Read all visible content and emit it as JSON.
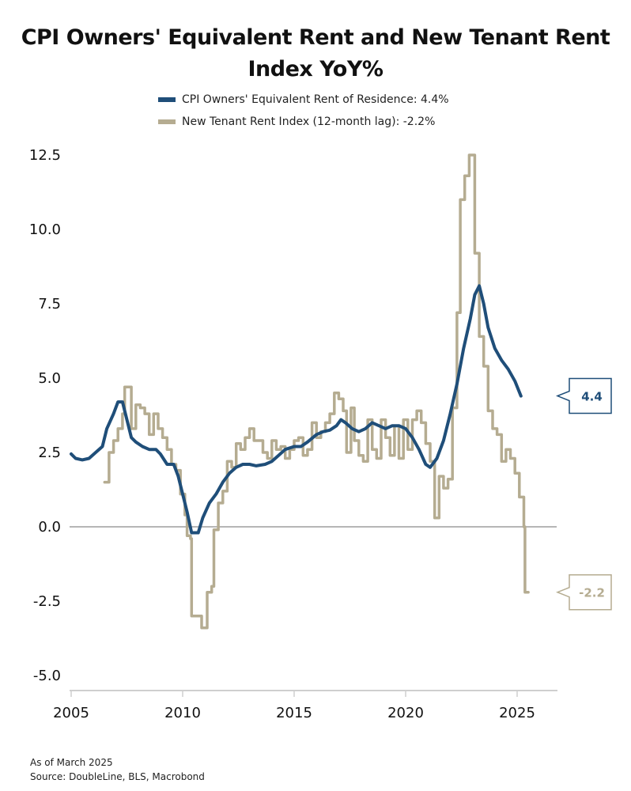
{
  "chart_data": {
    "type": "line",
    "title": "CPI Owners' Equivalent Rent and New Tenant Rent Index YoY%",
    "xlabel": "",
    "ylabel": "",
    "xlim": [
      2005,
      2026.8
    ],
    "ylim": [
      -5.0,
      12.5
    ],
    "x_ticks": [
      2005,
      2010,
      2015,
      2020,
      2025
    ],
    "x_tick_labels": [
      "2005",
      "2010",
      "2015",
      "2020",
      "2025"
    ],
    "y_ticks": [
      -5.0,
      -2.5,
      0.0,
      2.5,
      5.0,
      7.5,
      10.0,
      12.5
    ],
    "y_tick_labels": [
      "-5.0",
      "-2.5",
      "0.0",
      "2.5",
      "5.0",
      "7.5",
      "10.0",
      "12.5"
    ],
    "grid": false,
    "zero_line": true,
    "legend_position": "top-center",
    "series": [
      {
        "name": "CPI Owners' Equivalent Rent of Residence: 4.4%",
        "color": "#1f4e79",
        "last_value_label": "4.4",
        "points": [
          [
            2005.0,
            2.45
          ],
          [
            2005.2,
            2.3
          ],
          [
            2005.5,
            2.25
          ],
          [
            2005.8,
            2.3
          ],
          [
            2006.1,
            2.5
          ],
          [
            2006.4,
            2.7
          ],
          [
            2006.6,
            3.3
          ],
          [
            2006.9,
            3.8
          ],
          [
            2007.1,
            4.2
          ],
          [
            2007.3,
            4.2
          ],
          [
            2007.5,
            3.6
          ],
          [
            2007.7,
            3.0
          ],
          [
            2007.9,
            2.85
          ],
          [
            2008.2,
            2.7
          ],
          [
            2008.5,
            2.6
          ],
          [
            2008.8,
            2.6
          ],
          [
            2009.0,
            2.45
          ],
          [
            2009.3,
            2.1
          ],
          [
            2009.6,
            2.1
          ],
          [
            2009.8,
            1.7
          ],
          [
            2010.0,
            1.1
          ],
          [
            2010.2,
            0.5
          ],
          [
            2010.4,
            -0.2
          ],
          [
            2010.7,
            -0.2
          ],
          [
            2010.9,
            0.3
          ],
          [
            2011.2,
            0.8
          ],
          [
            2011.5,
            1.1
          ],
          [
            2011.8,
            1.5
          ],
          [
            2012.1,
            1.8
          ],
          [
            2012.4,
            2.0
          ],
          [
            2012.7,
            2.1
          ],
          [
            2013.0,
            2.1
          ],
          [
            2013.3,
            2.05
          ],
          [
            2013.7,
            2.1
          ],
          [
            2014.0,
            2.2
          ],
          [
            2014.3,
            2.4
          ],
          [
            2014.6,
            2.6
          ],
          [
            2015.0,
            2.7
          ],
          [
            2015.3,
            2.7
          ],
          [
            2015.6,
            2.85
          ],
          [
            2016.0,
            3.1
          ],
          [
            2016.3,
            3.2
          ],
          [
            2016.6,
            3.25
          ],
          [
            2016.9,
            3.4
          ],
          [
            2017.1,
            3.6
          ],
          [
            2017.3,
            3.5
          ],
          [
            2017.6,
            3.3
          ],
          [
            2017.9,
            3.2
          ],
          [
            2018.2,
            3.3
          ],
          [
            2018.5,
            3.5
          ],
          [
            2018.8,
            3.4
          ],
          [
            2019.1,
            3.3
          ],
          [
            2019.4,
            3.4
          ],
          [
            2019.7,
            3.4
          ],
          [
            2020.0,
            3.3
          ],
          [
            2020.3,
            3.0
          ],
          [
            2020.6,
            2.6
          ],
          [
            2020.9,
            2.1
          ],
          [
            2021.1,
            2.0
          ],
          [
            2021.4,
            2.3
          ],
          [
            2021.7,
            2.9
          ],
          [
            2022.0,
            3.8
          ],
          [
            2022.3,
            4.8
          ],
          [
            2022.6,
            6.0
          ],
          [
            2022.9,
            7.0
          ],
          [
            2023.1,
            7.8
          ],
          [
            2023.3,
            8.1
          ],
          [
            2023.5,
            7.5
          ],
          [
            2023.7,
            6.7
          ],
          [
            2024.0,
            6.0
          ],
          [
            2024.3,
            5.6
          ],
          [
            2024.6,
            5.3
          ],
          [
            2024.9,
            4.9
          ],
          [
            2025.17,
            4.4
          ]
        ]
      },
      {
        "name": "New Tenant Rent Index (12-month lag): -2.2%",
        "color": "#b5ac91",
        "last_value_label": "-2.2",
        "points": [
          [
            2006.5,
            1.5
          ],
          [
            2006.7,
            2.5
          ],
          [
            2006.9,
            2.9
          ],
          [
            2007.1,
            3.3
          ],
          [
            2007.3,
            3.8
          ],
          [
            2007.4,
            4.7
          ],
          [
            2007.6,
            4.7
          ],
          [
            2007.7,
            3.3
          ],
          [
            2007.9,
            4.1
          ],
          [
            2008.1,
            4.0
          ],
          [
            2008.3,
            3.8
          ],
          [
            2008.5,
            3.1
          ],
          [
            2008.7,
            3.8
          ],
          [
            2008.9,
            3.3
          ],
          [
            2009.1,
            3.0
          ],
          [
            2009.3,
            2.6
          ],
          [
            2009.5,
            2.1
          ],
          [
            2009.7,
            1.9
          ],
          [
            2009.9,
            1.1
          ],
          [
            2010.1,
            0.4
          ],
          [
            2010.2,
            -0.3
          ],
          [
            2010.35,
            -0.4
          ],
          [
            2010.4,
            -3.0
          ],
          [
            2010.7,
            -3.0
          ],
          [
            2010.85,
            -3.4
          ],
          [
            2011.0,
            -3.4
          ],
          [
            2011.1,
            -2.2
          ],
          [
            2011.3,
            -2.0
          ],
          [
            2011.4,
            -0.1
          ],
          [
            2011.6,
            0.8
          ],
          [
            2011.8,
            1.2
          ],
          [
            2012.0,
            2.2
          ],
          [
            2012.2,
            2.0
          ],
          [
            2012.4,
            2.8
          ],
          [
            2012.6,
            2.6
          ],
          [
            2012.8,
            3.0
          ],
          [
            2013.0,
            3.3
          ],
          [
            2013.2,
            2.9
          ],
          [
            2013.4,
            2.9
          ],
          [
            2013.6,
            2.5
          ],
          [
            2013.8,
            2.3
          ],
          [
            2014.0,
            2.9
          ],
          [
            2014.2,
            2.6
          ],
          [
            2014.4,
            2.7
          ],
          [
            2014.6,
            2.3
          ],
          [
            2014.8,
            2.6
          ],
          [
            2015.0,
            2.9
          ],
          [
            2015.2,
            3.0
          ],
          [
            2015.4,
            2.4
          ],
          [
            2015.6,
            2.6
          ],
          [
            2015.8,
            3.5
          ],
          [
            2016.0,
            3.0
          ],
          [
            2016.2,
            3.2
          ],
          [
            2016.4,
            3.5
          ],
          [
            2016.6,
            3.8
          ],
          [
            2016.8,
            4.5
          ],
          [
            2017.0,
            4.3
          ],
          [
            2017.2,
            3.9
          ],
          [
            2017.35,
            2.5
          ],
          [
            2017.55,
            4.0
          ],
          [
            2017.7,
            2.9
          ],
          [
            2017.9,
            2.4
          ],
          [
            2018.1,
            2.2
          ],
          [
            2018.3,
            3.6
          ],
          [
            2018.5,
            2.6
          ],
          [
            2018.7,
            2.3
          ],
          [
            2018.9,
            3.6
          ],
          [
            2019.1,
            3.0
          ],
          [
            2019.3,
            2.4
          ],
          [
            2019.5,
            3.4
          ],
          [
            2019.7,
            2.3
          ],
          [
            2019.9,
            3.6
          ],
          [
            2020.1,
            2.6
          ],
          [
            2020.3,
            3.6
          ],
          [
            2020.5,
            3.9
          ],
          [
            2020.7,
            3.5
          ],
          [
            2020.9,
            2.8
          ],
          [
            2021.1,
            2.2
          ],
          [
            2021.3,
            0.3
          ],
          [
            2021.5,
            1.7
          ],
          [
            2021.7,
            1.3
          ],
          [
            2021.9,
            1.6
          ],
          [
            2022.1,
            4.0
          ],
          [
            2022.3,
            7.2
          ],
          [
            2022.45,
            11.0
          ],
          [
            2022.65,
            11.8
          ],
          [
            2022.85,
            12.5
          ],
          [
            2023.0,
            12.5
          ],
          [
            2023.1,
            9.2
          ],
          [
            2023.3,
            6.4
          ],
          [
            2023.5,
            5.4
          ],
          [
            2023.7,
            3.9
          ],
          [
            2023.9,
            3.3
          ],
          [
            2024.1,
            3.1
          ],
          [
            2024.3,
            2.2
          ],
          [
            2024.5,
            2.6
          ],
          [
            2024.7,
            2.3
          ],
          [
            2024.9,
            1.8
          ],
          [
            2025.1,
            1.0
          ],
          [
            2025.3,
            0.0
          ],
          [
            2025.35,
            -2.2
          ],
          [
            2025.5,
            -2.2
          ]
        ]
      }
    ],
    "annotations": [
      "4.4",
      "-2.2"
    ]
  },
  "title": "CPI Owners' Equivalent Rent and New Tenant Rent Index YoY%",
  "title_line1": "CPI Owners' Equivalent Rent and New Tenant Rent",
  "title_line2": "Index YoY%",
  "legend": [
    {
      "label": "CPI Owners' Equivalent Rent of Residence: 4.4%",
      "color": "#1f4e79"
    },
    {
      "label": "New Tenant Rent Index (12-month lag): -2.2%",
      "color": "#b5ac91"
    }
  ],
  "footer": {
    "as_of": "As of March 2025",
    "source": "Source: DoubleLine, BLS, Macrobond"
  }
}
